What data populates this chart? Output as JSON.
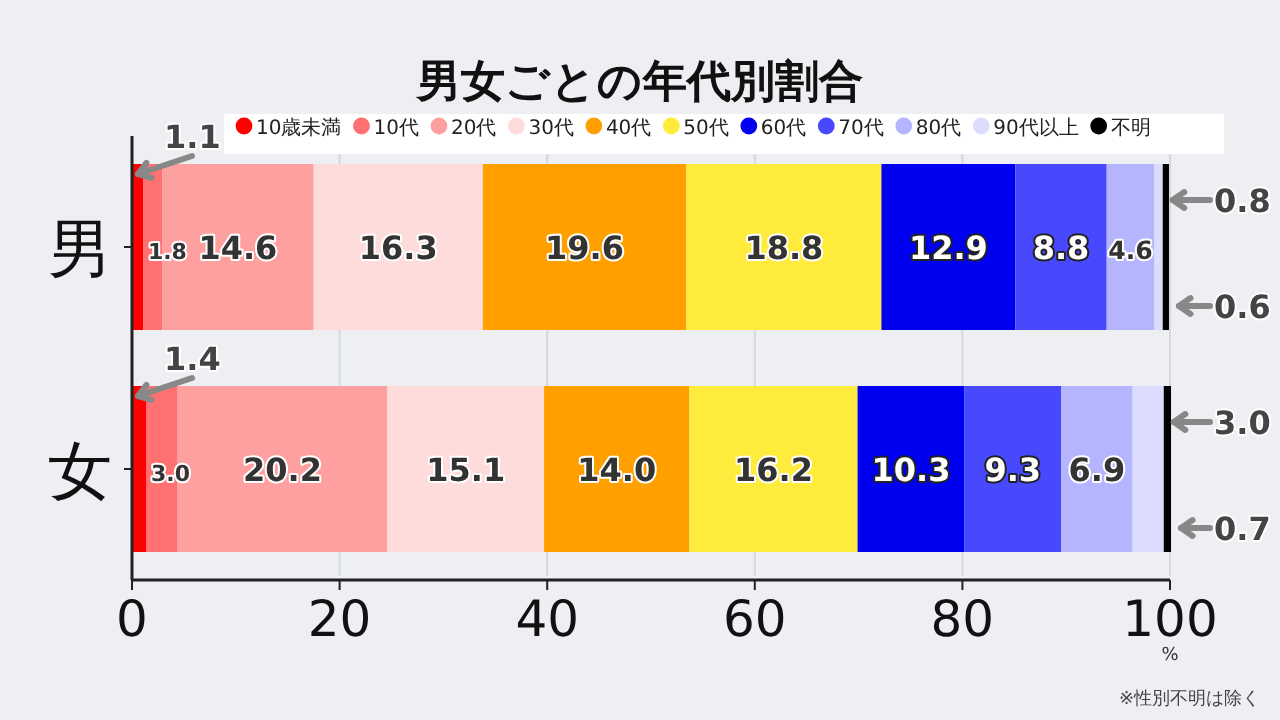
{
  "chart_data": {
    "type": "bar",
    "orientation": "horizontal",
    "stacked": true,
    "title": "男女ごとの年代別割合",
    "categories": [
      "男",
      "女"
    ],
    "series": [
      {
        "name": "10歳未満",
        "color": "#ff0000",
        "values": [
          1.1,
          1.4
        ],
        "value_labels": [
          "1.1",
          "1.4"
        ]
      },
      {
        "name": "10代",
        "color": "#ff7070",
        "values": [
          1.8,
          3.0
        ],
        "value_labels": [
          "1.8",
          "3.0"
        ]
      },
      {
        "name": "20代",
        "color": "#ffa0a0",
        "values": [
          14.6,
          20.2
        ],
        "value_labels": [
          "14.6",
          "20.2"
        ]
      },
      {
        "name": "30代",
        "color": "#ffdcdc",
        "values": [
          16.3,
          15.1
        ],
        "value_labels": [
          "16.3",
          "15.1"
        ]
      },
      {
        "name": "40代",
        "color": "#ffa000",
        "values": [
          19.6,
          14.0
        ],
        "value_labels": [
          "19.6",
          "14.0"
        ]
      },
      {
        "name": "50代",
        "color": "#ffeb3b",
        "values": [
          18.8,
          16.2
        ],
        "value_labels": [
          "18.8",
          "16.2"
        ]
      },
      {
        "name": "60代",
        "color": "#0000f0",
        "values": [
          12.9,
          10.3
        ],
        "value_labels": [
          "12.9",
          "10.3"
        ]
      },
      {
        "name": "70代",
        "color": "#4848ff",
        "values": [
          8.8,
          9.3
        ],
        "value_labels": [
          "8.8",
          "9.3"
        ]
      },
      {
        "name": "80代",
        "color": "#b4b4ff",
        "values": [
          4.6,
          6.9
        ],
        "value_labels": [
          "4.6",
          "6.9"
        ]
      },
      {
        "name": "90代以上",
        "color": "#dcdcff",
        "values": [
          0.8,
          3.0
        ],
        "value_labels": [
          "0.8",
          "3.0"
        ]
      },
      {
        "name": "不明",
        "color": "#000000",
        "values": [
          0.6,
          0.7
        ],
        "value_labels": [
          "0.6",
          "0.7"
        ]
      }
    ],
    "xlim": [
      0,
      100
    ],
    "xticks": [
      0,
      20,
      40,
      60,
      80,
      100
    ],
    "xlabel": "%",
    "grid": "x",
    "legend": "top",
    "annotations": [
      "※性別不明は除く"
    ]
  }
}
